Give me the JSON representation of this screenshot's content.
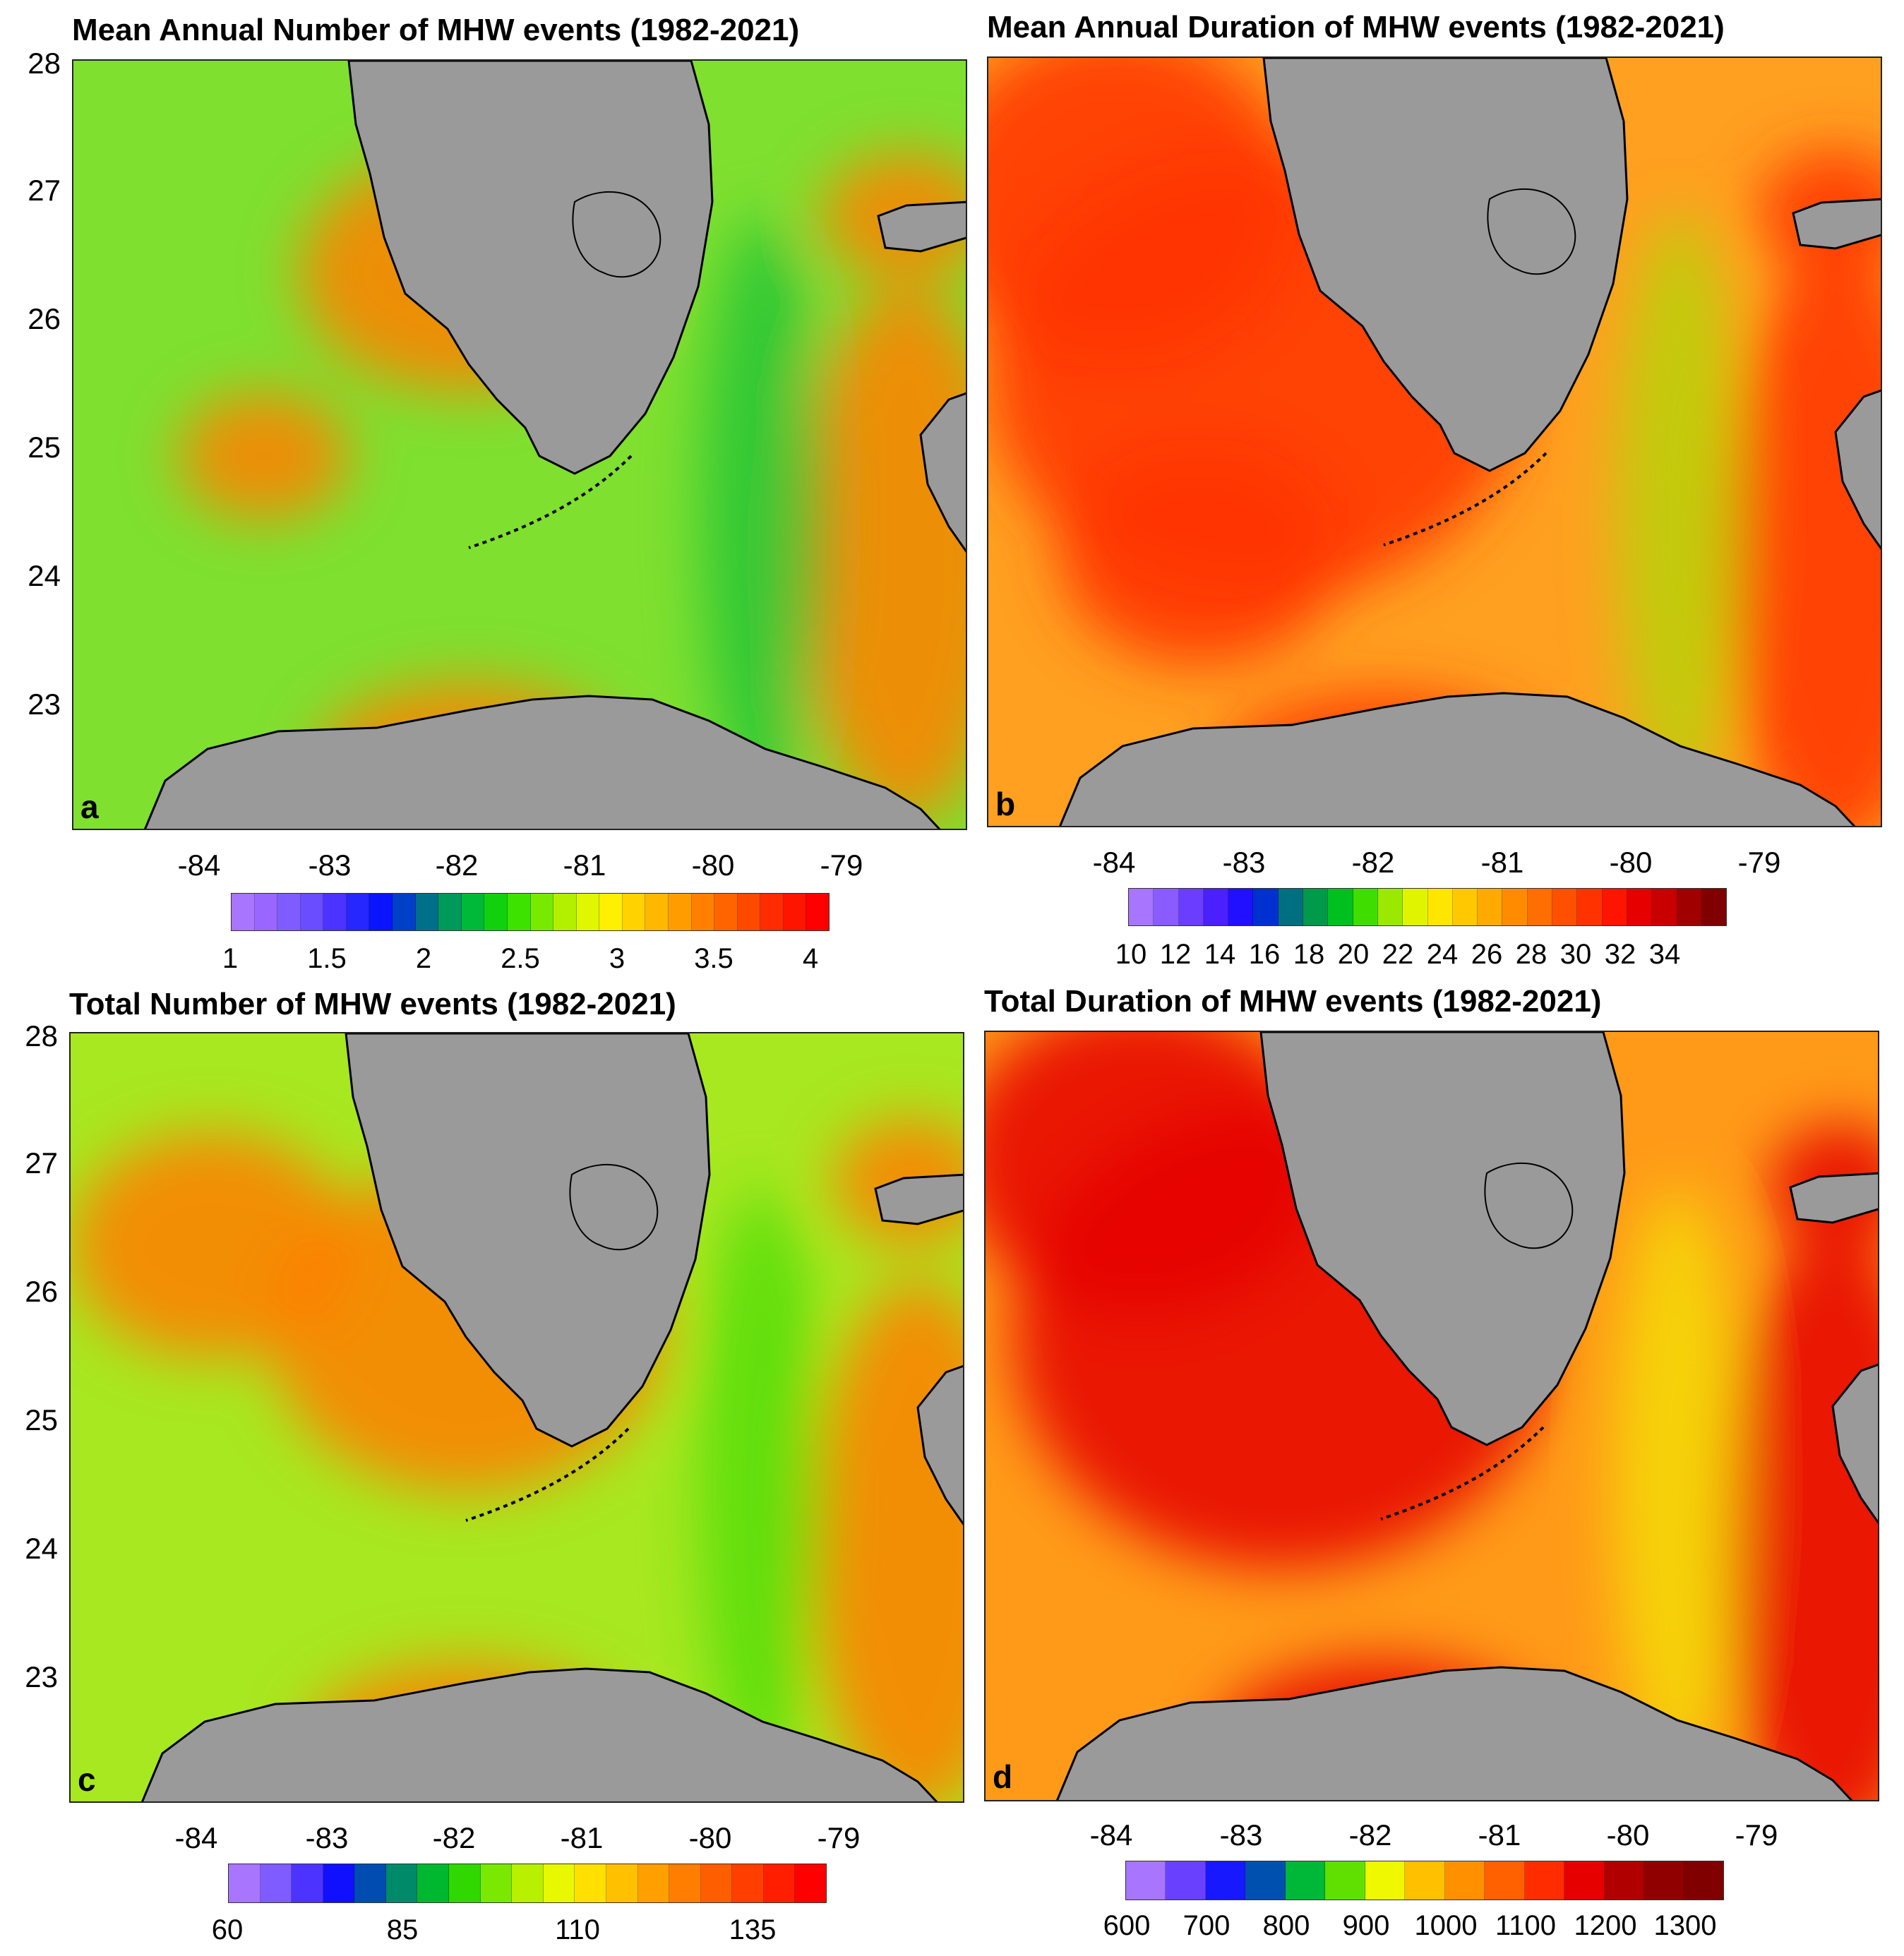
{
  "panels": [
    {
      "id": "a",
      "title": "Mean Annual Number of MHW events (1982-2021)",
      "letter": "a",
      "y_ticks": [
        "28",
        "27",
        "26",
        "25",
        "24",
        "23"
      ],
      "x_ticks": [
        "-84",
        "-83",
        "-82",
        "-81",
        "-80",
        "-79"
      ],
      "colorbar_labels": [
        "1",
        "1.5",
        "2",
        "2.5",
        "3",
        "3.5",
        "4"
      ],
      "colorbar_colors": [
        "#a875ff",
        "#9966ff",
        "#7f5cff",
        "#6a4dff",
        "#4d33ff",
        "#2626ff",
        "#0a14ff",
        "#0040c8",
        "#006f8a",
        "#00995c",
        "#00b938",
        "#11d10f",
        "#3ee200",
        "#78ea00",
        "#b3f000",
        "#e0f700",
        "#ffef00",
        "#ffd200",
        "#ffb700",
        "#ff9d00",
        "#ff8000",
        "#ff6400",
        "#ff4800",
        "#ff2c00",
        "#ff1400",
        "#ff0000"
      ],
      "water_base": "#7fe030"
    },
    {
      "id": "b",
      "title": "Mean Annual Duration of MHW events (1982-2021)",
      "letter": "b",
      "y_ticks": [],
      "x_ticks": [
        "-84",
        "-83",
        "-82",
        "-81",
        "-80",
        "-79"
      ],
      "colorbar_labels": [
        "10",
        "12",
        "14",
        "16",
        "18",
        "20",
        "22",
        "24",
        "26",
        "28",
        "30",
        "32",
        "34"
      ],
      "colorbar_colors": [
        "#a875ff",
        "#8a5cff",
        "#6a3dff",
        "#4a20ff",
        "#2010ff",
        "#0030d0",
        "#007080",
        "#009a4a",
        "#00c020",
        "#40de00",
        "#9be800",
        "#e0f400",
        "#ffe600",
        "#ffc800",
        "#ffaa00",
        "#ff8c00",
        "#ff6e00",
        "#ff5000",
        "#ff3200",
        "#ff1400",
        "#e60000",
        "#c80000",
        "#a00000",
        "#800000"
      ],
      "water_base": "#ffa020"
    },
    {
      "id": "c",
      "title": "Total Number of MHW events (1982-2021)",
      "letter": "c",
      "y_ticks": [
        "28",
        "27",
        "26",
        "25",
        "24",
        "23"
      ],
      "x_ticks": [
        "-84",
        "-83",
        "-82",
        "-81",
        "-80",
        "-79"
      ],
      "colorbar_labels": [
        "60",
        "85",
        "110",
        "135"
      ],
      "colorbar_colors": [
        "#a875ff",
        "#7f5cff",
        "#4d33ff",
        "#1010ff",
        "#004cb0",
        "#008a6a",
        "#00b830",
        "#30d800",
        "#7ae800",
        "#b8f000",
        "#e8f800",
        "#ffe000",
        "#ffc000",
        "#ff9f00",
        "#ff7e00",
        "#ff5e00",
        "#ff3e00",
        "#ff1e00",
        "#ff0000"
      ],
      "water_base": "#a8e820"
    },
    {
      "id": "d",
      "title": "Total Duration of MHW events (1982-2021)",
      "letter": "d",
      "y_ticks": [],
      "x_ticks": [
        "-84",
        "-83",
        "-82",
        "-81",
        "-80",
        "-79"
      ],
      "colorbar_labels": [
        "600",
        "700",
        "800",
        "900",
        "1000",
        "1100",
        "1200",
        "1300"
      ],
      "colorbar_colors": [
        "#a875ff",
        "#6a40ff",
        "#1818ff",
        "#0050b0",
        "#00b838",
        "#60e000",
        "#f0f800",
        "#ffc000",
        "#ff9000",
        "#ff6000",
        "#ff2c00",
        "#e60000",
        "#b00000",
        "#900000",
        "#800000"
      ],
      "water_base": "#ff9a18"
    }
  ]
}
